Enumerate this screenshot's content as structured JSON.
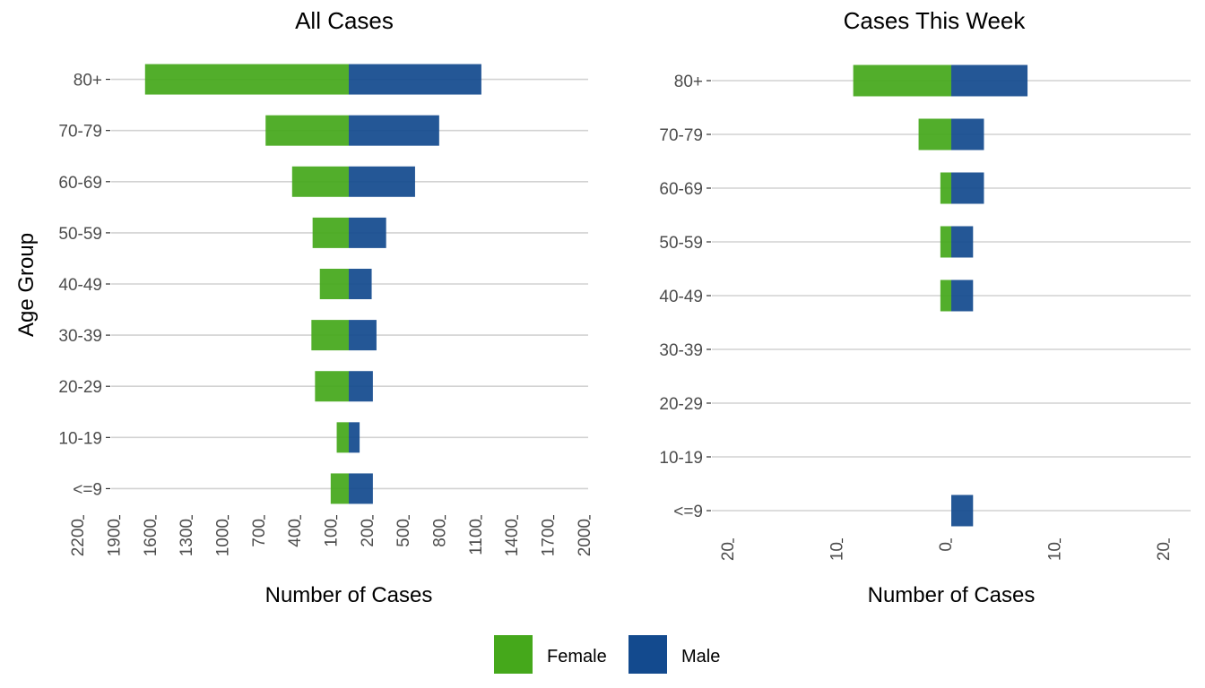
{
  "colors": {
    "female": "#45A81B",
    "male": "#134A8E"
  },
  "legend": {
    "female_label": "Female",
    "male_label": "Male",
    "placement": "bottom"
  },
  "chart_data": [
    {
      "type": "bar",
      "orientation": "horizontal-pyramid",
      "title": "All Cases",
      "xlabel": "Number of Cases",
      "ylabel": "Age Group",
      "categories": [
        "<=9",
        "10-19",
        "20-29",
        "30-39",
        "40-49",
        "50-59",
        "60-69",
        "70-79",
        "80+"
      ],
      "series": [
        {
          "name": "Female",
          "values": [
            150,
            100,
            280,
            310,
            240,
            300,
            470,
            690,
            1690
          ]
        },
        {
          "name": "Male",
          "values": [
            200,
            90,
            200,
            230,
            190,
            310,
            550,
            750,
            1100
          ]
        }
      ],
      "xlim": [
        -2300,
        2000
      ],
      "xticks": [
        -2200,
        -1900,
        -1600,
        -1300,
        -1000,
        -700,
        -400,
        -100,
        200,
        500,
        800,
        1100,
        1400,
        1700,
        2000
      ],
      "xtick_labels": [
        "2200",
        "1900",
        "1600",
        "1300",
        "1000",
        "700",
        "400",
        "100",
        "200",
        "500",
        "800",
        "1100",
        "1400",
        "1700",
        "2000"
      ],
      "grid": "horizontal"
    },
    {
      "type": "bar",
      "orientation": "horizontal-pyramid",
      "title": "Cases This Week",
      "xlabel": "Number of Cases",
      "ylabel": "",
      "categories": [
        "<=9",
        "10-19",
        "20-29",
        "30-39",
        "40-49",
        "50-59",
        "60-69",
        "70-79",
        "80+"
      ],
      "series": [
        {
          "name": "Female",
          "values": [
            0,
            0,
            0,
            0,
            1,
            1,
            1,
            3,
            9
          ]
        },
        {
          "name": "Male",
          "values": [
            2,
            0,
            0,
            0,
            2,
            2,
            3,
            3,
            7
          ]
        }
      ],
      "xlim": [
        -22,
        22
      ],
      "xticks": [
        -20,
        -10,
        0,
        10,
        20
      ],
      "xtick_labels": [
        "20",
        "10",
        "0",
        "10",
        "20"
      ],
      "grid": "horizontal"
    }
  ]
}
